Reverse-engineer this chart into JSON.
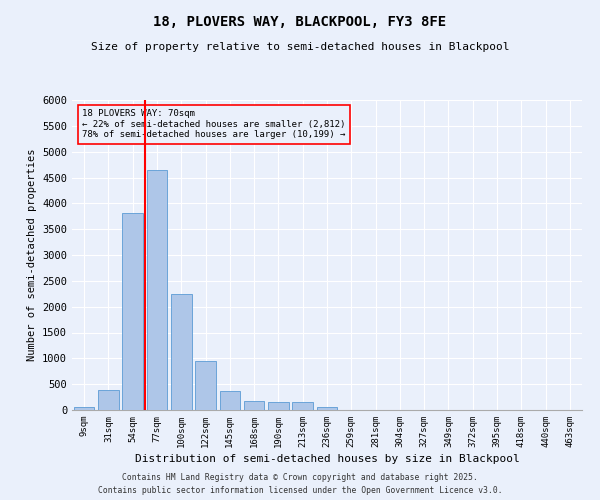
{
  "title1": "18, PLOVERS WAY, BLACKPOOL, FY3 8FE",
  "title2": "Size of property relative to semi-detached houses in Blackpool",
  "xlabel": "Distribution of semi-detached houses by size in Blackpool",
  "ylabel": "Number of semi-detached properties",
  "bins": [
    "9sqm",
    "31sqm",
    "54sqm",
    "77sqm",
    "100sqm",
    "122sqm",
    "145sqm",
    "168sqm",
    "190sqm",
    "213sqm",
    "236sqm",
    "259sqm",
    "281sqm",
    "304sqm",
    "327sqm",
    "349sqm",
    "372sqm",
    "395sqm",
    "418sqm",
    "440sqm",
    "463sqm"
  ],
  "values": [
    55,
    380,
    3820,
    4650,
    2250,
    950,
    370,
    175,
    150,
    150,
    50,
    0,
    0,
    0,
    0,
    0,
    0,
    0,
    0,
    0,
    0
  ],
  "bar_color": "#aec6e8",
  "bar_edge_color": "#5b9bd5",
  "vline_color": "red",
  "vline_pos": 2.5,
  "bg_color": "#eaf0fb",
  "grid_color": "#ffffff",
  "annotation_label": "18 PLOVERS WAY: 70sqm",
  "annotation_line1": "← 22% of semi-detached houses are smaller (2,812)",
  "annotation_line2": "78% of semi-detached houses are larger (10,199) →",
  "footer1": "Contains HM Land Registry data © Crown copyright and database right 2025.",
  "footer2": "Contains public sector information licensed under the Open Government Licence v3.0.",
  "ylim": [
    0,
    6000
  ],
  "yticks": [
    0,
    500,
    1000,
    1500,
    2000,
    2500,
    3000,
    3500,
    4000,
    4500,
    5000,
    5500,
    6000
  ]
}
